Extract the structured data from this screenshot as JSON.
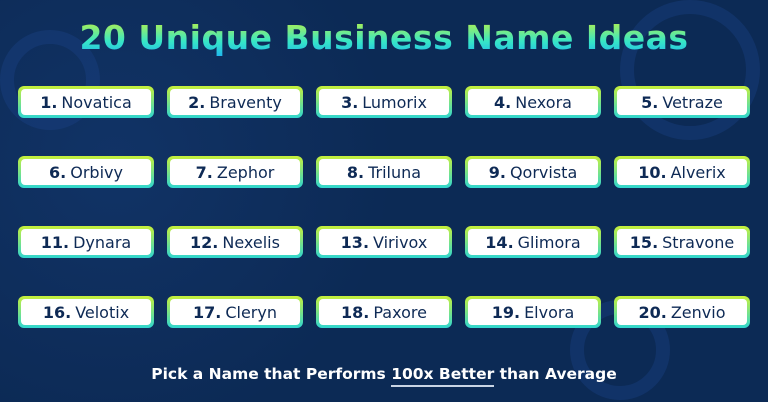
{
  "title": "20 Unique Business Name Ideas",
  "colors": {
    "background": "#0c2a55",
    "title_gradient_top": "#c6f23a",
    "title_gradient_bottom": "#1fb5f0",
    "card_border_top": "#c8f03a",
    "card_border_bottom": "#2fd6d0",
    "card_text": "#0e2a55"
  },
  "names": [
    {
      "num": "1.",
      "name": "Novatica"
    },
    {
      "num": "2.",
      "name": "Braventy"
    },
    {
      "num": "3.",
      "name": "Lumorix"
    },
    {
      "num": "4.",
      "name": "Nexora"
    },
    {
      "num": "5.",
      "name": "Vetraze"
    },
    {
      "num": "6.",
      "name": "Orbivy"
    },
    {
      "num": "7.",
      "name": "Zephor"
    },
    {
      "num": "8.",
      "name": "Triluna"
    },
    {
      "num": "9.",
      "name": "Qorvista"
    },
    {
      "num": "10.",
      "name": "Alverix"
    },
    {
      "num": "11.",
      "name": "Dynara"
    },
    {
      "num": "12.",
      "name": "Nexelis"
    },
    {
      "num": "13.",
      "name": "Virivox"
    },
    {
      "num": "14.",
      "name": "Glimora"
    },
    {
      "num": "15.",
      "name": "Stravone"
    },
    {
      "num": "16.",
      "name": "Velotix"
    },
    {
      "num": "17.",
      "name": "Cleryn"
    },
    {
      "num": "18.",
      "name": "Paxore"
    },
    {
      "num": "19.",
      "name": "Elvora"
    },
    {
      "num": "20.",
      "name": "Zenvio"
    }
  ],
  "tagline": {
    "before": "Pick a Name that Performs ",
    "highlight": "100x Better",
    "after": " than Average"
  }
}
